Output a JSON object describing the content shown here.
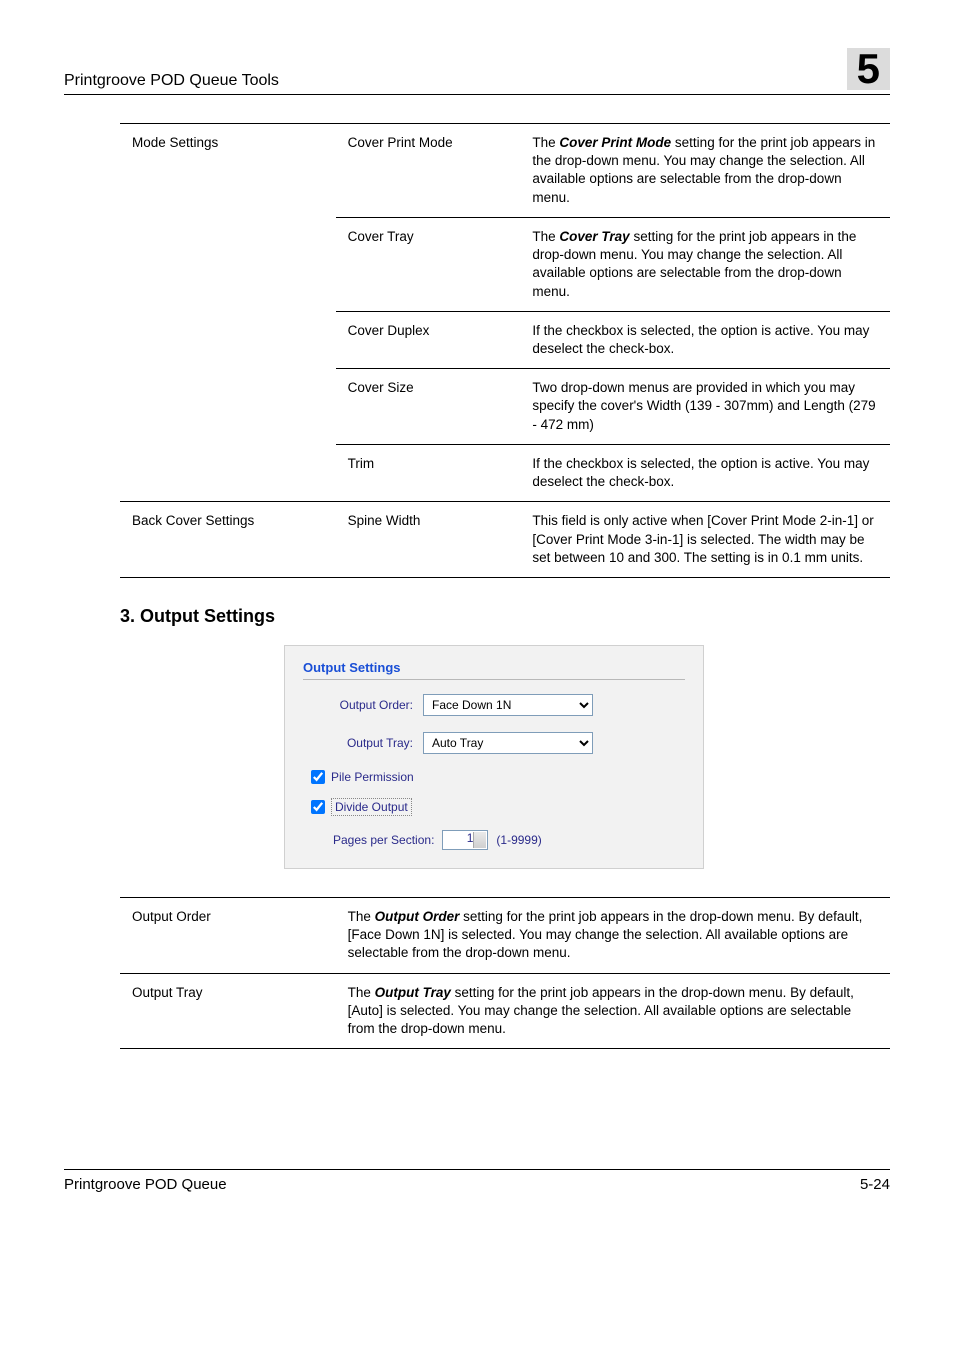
{
  "header": {
    "running_title": "Printgroove POD Queue Tools",
    "chapter_number": "5"
  },
  "table1": {
    "rows": [
      {
        "rowgroup": "Mode Settings",
        "sub": "Cover Print Mode",
        "desc_pre": "The ",
        "desc_bold": "Cover Print Mode",
        "desc_post": " setting for the print job appears in the drop-down menu. You may change the selection. All available options are selectable from the drop-down menu."
      },
      {
        "sub": "Cover Tray",
        "desc_pre": "The ",
        "desc_bold": "Cover Tray",
        "desc_post": " setting for the print job appears in the drop-down menu. You may change the selection. All available options are selectable from the drop-down menu."
      },
      {
        "sub": "Cover Duplex",
        "desc_plain": "If the checkbox is selected, the option is active. You may deselect the check-box."
      },
      {
        "sub": "Cover Size",
        "desc_plain": "Two drop-down menus are provided in which you may specify the cover's Width (139 - 307mm) and Length (279 - 472 mm)"
      },
      {
        "sub": "Trim",
        "desc_plain": "If the checkbox is selected, the option is active. You may deselect the check-box."
      },
      {
        "rowgroup": "Back Cover Settings",
        "sub": "Spine Width",
        "desc_plain": "This field is only active when [Cover Print Mode 2-in-1] or [Cover Print Mode 3-in-1] is selected. The width may be set between 10 and 300. The setting is in 0.1 mm units."
      }
    ]
  },
  "subhead": "3. Output Settings",
  "screenshot": {
    "panel_title": "Output Settings",
    "output_order_label": "Output Order:",
    "output_order_value": "Face Down 1N",
    "output_tray_label": "Output Tray:",
    "output_tray_value": "Auto Tray",
    "pile_permission_label": "Pile Permission",
    "divide_output_label": "Divide Output",
    "pages_per_section_label": "Pages per Section:",
    "pages_per_section_value": "1",
    "pages_per_section_range": "(1-9999)"
  },
  "table2": {
    "rows": [
      {
        "name": "Output Order",
        "desc_pre": "The ",
        "desc_bold": "Output Order",
        "desc_post": " setting for the print job appears in the drop-down menu. By default, [Face Down 1N] is selected. You may change the selection. All available options are selectable from the drop-down menu."
      },
      {
        "name": "Output Tray",
        "desc_pre": "The ",
        "desc_bold": "Output Tray",
        "desc_post": " setting for the print job appears in the drop-down menu. By default, [Auto] is selected. You may change the selection. All available options are selectable from the drop-down menu."
      }
    ]
  },
  "footer": {
    "left": "Printgroove POD Queue",
    "right": "5-24"
  }
}
